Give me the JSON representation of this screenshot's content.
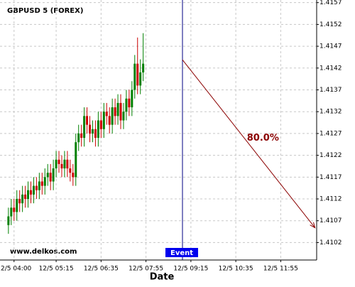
{
  "chart_data": {
    "type": "candlestick",
    "title": "GBPUSD 5 (FOREX)",
    "watermark": "www.delkos.com",
    "x_label": "Date",
    "up_color": "#008000",
    "down_color": "#cc0000",
    "grid": true,
    "x": [
      230,
      235,
      240,
      245,
      250,
      255,
      260,
      265,
      270,
      275,
      280,
      285,
      290,
      295,
      300,
      305,
      310,
      315,
      320,
      325,
      330,
      335,
      340,
      345,
      350,
      355,
      360,
      365,
      370,
      375,
      380,
      385,
      390,
      395,
      400,
      405,
      410,
      415,
      420,
      425,
      430,
      435,
      440,
      445,
      450,
      455,
      460,
      465,
      470
    ],
    "open": [
      1.4106,
      1.4108,
      1.411,
      1.4109,
      1.4112,
      1.4111,
      1.4113,
      1.4112,
      1.4114,
      1.4113,
      1.4115,
      1.4114,
      1.4116,
      1.4115,
      1.4117,
      1.4118,
      1.4116,
      1.4119,
      1.4121,
      1.412,
      1.4119,
      1.4121,
      1.4119,
      1.4118,
      1.4117,
      1.4125,
      1.4127,
      1.4126,
      1.4131,
      1.4129,
      1.4127,
      1.4128,
      1.4126,
      1.413,
      1.4128,
      1.4132,
      1.4131,
      1.4129,
      1.4133,
      1.4131,
      1.4134,
      1.413,
      1.4132,
      1.4135,
      1.4133,
      1.4137,
      1.4143,
      1.4138,
      1.4141
    ],
    "high": [
      1.411,
      1.4112,
      1.4112,
      1.4114,
      1.4114,
      1.4115,
      1.4115,
      1.4116,
      1.4116,
      1.4117,
      1.4117,
      1.4118,
      1.4118,
      1.4119,
      1.412,
      1.412,
      1.4121,
      1.4123,
      1.4123,
      1.4122,
      1.4123,
      1.4123,
      1.4121,
      1.412,
      1.4127,
      1.4129,
      1.4129,
      1.4133,
      1.4133,
      1.4131,
      1.413,
      1.413,
      1.4132,
      1.4132,
      1.4134,
      1.4134,
      1.4133,
      1.4135,
      1.4135,
      1.4136,
      1.4136,
      1.4134,
      1.4137,
      1.4137,
      1.4139,
      1.4145,
      1.4149,
      1.4144,
      1.415
    ],
    "low": [
      1.4104,
      1.4106,
      1.4107,
      1.4107,
      1.4109,
      1.4109,
      1.411,
      1.411,
      1.4111,
      1.4111,
      1.4112,
      1.4112,
      1.4113,
      1.4113,
      1.4115,
      1.4114,
      1.4114,
      1.4117,
      1.4118,
      1.4117,
      1.4117,
      1.4117,
      1.4116,
      1.4115,
      1.4115,
      1.4123,
      1.4124,
      1.4124,
      1.4127,
      1.4125,
      1.4125,
      1.4124,
      1.4124,
      1.4126,
      1.4126,
      1.4129,
      1.4127,
      1.4127,
      1.4129,
      1.4129,
      1.4128,
      1.4128,
      1.413,
      1.4131,
      1.4131,
      1.4135,
      1.4136,
      1.4136,
      1.4139
    ],
    "close": [
      1.4108,
      1.411,
      1.4109,
      1.4112,
      1.4111,
      1.4113,
      1.4112,
      1.4114,
      1.4113,
      1.4115,
      1.4114,
      1.4116,
      1.4115,
      1.4117,
      1.4118,
      1.4116,
      1.4119,
      1.4121,
      1.412,
      1.4119,
      1.4121,
      1.4119,
      1.4118,
      1.4117,
      1.4125,
      1.4127,
      1.4126,
      1.4131,
      1.4129,
      1.4127,
      1.4128,
      1.4126,
      1.413,
      1.4128,
      1.4132,
      1.4131,
      1.4129,
      1.4133,
      1.4131,
      1.4134,
      1.413,
      1.4132,
      1.4135,
      1.4133,
      1.4137,
      1.4143,
      1.4138,
      1.4141,
      1.4143
    ],
    "xlim": [
      215,
      779
    ],
    "ylim": [
      1.4098,
      1.41576
    ],
    "xticks": [
      {
        "value": 240,
        "label": "12/5 04:00"
      },
      {
        "value": 315,
        "label": "12/5 05:15"
      },
      {
        "value": 395,
        "label": "12/5 06:35"
      },
      {
        "value": 475,
        "label": "12/5 07:55"
      },
      {
        "value": 555,
        "label": "12/5 09:15"
      },
      {
        "value": 635,
        "label": "12/5 10:35"
      },
      {
        "value": 715,
        "label": "12/5 11:55"
      }
    ],
    "yticks": [
      1.4102,
      1.4107,
      1.4112,
      1.4117,
      1.4122,
      1.4127,
      1.4132,
      1.4137,
      1.4142,
      1.4147,
      1.4152,
      1.4157
    ],
    "event": {
      "label": "Event",
      "x": 540,
      "color": "#000080"
    },
    "projection": {
      "label": "80.0%",
      "x": [
        540,
        776
      ],
      "y": [
        1.41439,
        1.41054
      ],
      "color": "#8b0000"
    }
  }
}
